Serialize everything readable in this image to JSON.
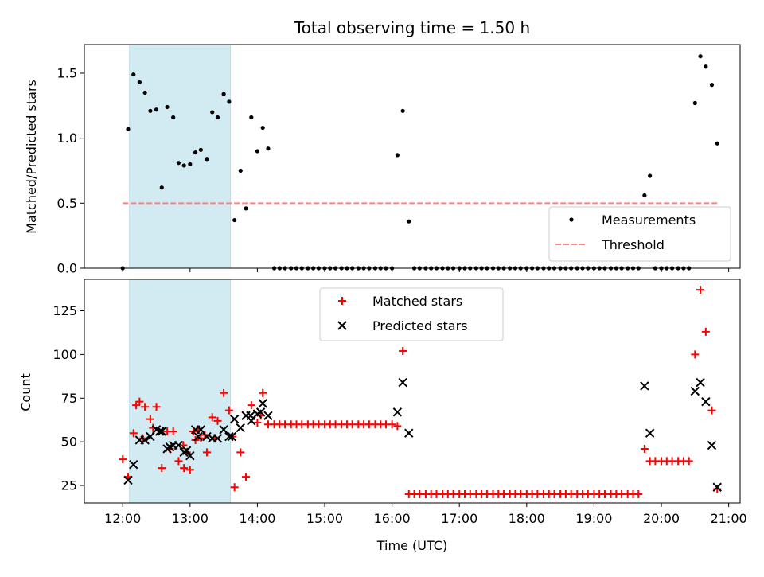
{
  "chart_data": [
    {
      "type": "scatter",
      "title": "Total observing time = 1.50 h",
      "xlabel": "",
      "ylabel": "Matched/Predicted stars",
      "x_range_hours": [
        11.43,
        21.17
      ],
      "ylim": [
        0,
        1.72
      ],
      "yticks": [
        0.0,
        0.5,
        1.0,
        1.5
      ],
      "ytick_labels": [
        "0.0",
        "0.5",
        "1.0",
        "1.5"
      ],
      "legend_position": "lower-right",
      "shaded_span_hours": [
        12.1,
        13.6
      ],
      "shaded_color": "#add8e6",
      "series": [
        {
          "name": "Measurements",
          "color": "#000000",
          "marker": "dot",
          "x": [
            12.0,
            12.08,
            12.16,
            12.25,
            12.33,
            12.41,
            12.5,
            12.58,
            12.66,
            12.75,
            12.83,
            12.91,
            13.0,
            13.08,
            13.16,
            13.25,
            13.33,
            13.41,
            13.5,
            13.58,
            13.66,
            13.75,
            13.83,
            13.91,
            14.0,
            14.08,
            14.16,
            14.25,
            14.33,
            14.41,
            14.5,
            14.58,
            14.66,
            14.75,
            14.83,
            14.91,
            15.0,
            15.08,
            15.16,
            15.25,
            15.33,
            15.41,
            15.5,
            15.58,
            15.66,
            15.75,
            15.83,
            15.91,
            16.0,
            16.08,
            16.16,
            16.25,
            16.33,
            16.41,
            16.5,
            16.58,
            16.66,
            16.75,
            16.83,
            16.91,
            17.0,
            17.08,
            17.16,
            17.25,
            17.33,
            17.41,
            17.5,
            17.58,
            17.66,
            17.75,
            17.83,
            17.91,
            18.0,
            18.08,
            18.16,
            18.25,
            18.33,
            18.41,
            18.5,
            18.58,
            18.66,
            18.75,
            18.83,
            18.91,
            19.0,
            19.08,
            19.16,
            19.25,
            19.33,
            19.41,
            19.5,
            19.58,
            19.66,
            19.75,
            19.83,
            19.91,
            20.0,
            20.08,
            20.16,
            20.25,
            20.33,
            20.41,
            20.5,
            20.58,
            20.66,
            20.75,
            20.83
          ],
          "y": [
            0.0,
            1.07,
            1.49,
            1.43,
            1.35,
            1.21,
            1.22,
            0.62,
            1.24,
            1.16,
            0.81,
            0.79,
            0.8,
            0.89,
            0.91,
            0.84,
            1.2,
            1.16,
            1.34,
            1.28,
            0.37,
            0.75,
            0.46,
            1.16,
            0.9,
            1.08,
            0.92,
            0.0,
            0.0,
            0.0,
            0.0,
            0.0,
            0.0,
            0.0,
            0.0,
            0.0,
            0.0,
            0.0,
            0.0,
            0.0,
            0.0,
            0.0,
            0.0,
            0.0,
            0.0,
            0.0,
            0.0,
            0.0,
            0.0,
            0.87,
            1.21,
            0.36,
            0.0,
            0.0,
            0.0,
            0.0,
            0.0,
            0.0,
            0.0,
            0.0,
            0.0,
            0.0,
            0.0,
            0.0,
            0.0,
            0.0,
            0.0,
            0.0,
            0.0,
            0.0,
            0.0,
            0.0,
            0.0,
            0.0,
            0.0,
            0.0,
            0.0,
            0.0,
            0.0,
            0.0,
            0.0,
            0.0,
            0.0,
            0.0,
            0.0,
            0.0,
            0.0,
            0.0,
            0.0,
            0.0,
            0.0,
            0.0,
            0.0,
            0.56,
            0.71,
            0.0,
            0.0,
            0.0,
            0.0,
            0.0,
            0.0,
            0.0,
            1.27,
            1.63,
            1.55,
            1.41,
            0.96
          ]
        },
        {
          "name": "Threshold",
          "color": "#ff8080",
          "style": "dashed",
          "x": [
            12.0,
            20.83
          ],
          "y": [
            0.5,
            0.5
          ]
        }
      ]
    },
    {
      "type": "scatter",
      "title": "",
      "xlabel": "Time (UTC)",
      "ylabel": "Count",
      "x_range_hours": [
        11.43,
        21.17
      ],
      "ylim": [
        15,
        143
      ],
      "yticks": [
        25,
        50,
        75,
        100,
        125
      ],
      "ytick_labels": [
        "25",
        "50",
        "75",
        "100",
        "125"
      ],
      "xticks_hours": [
        12,
        13,
        14,
        15,
        16,
        17,
        18,
        19,
        20,
        21
      ],
      "xtick_labels": [
        "12:00",
        "13:00",
        "14:00",
        "15:00",
        "16:00",
        "17:00",
        "18:00",
        "19:00",
        "20:00",
        "21:00"
      ],
      "legend_position": "upper-center",
      "shaded_span_hours": [
        12.1,
        13.6
      ],
      "shaded_color": "#add8e6",
      "series": [
        {
          "name": "Matched stars",
          "color": "#ff0000",
          "marker": "plus",
          "x": [
            12.0,
            12.08,
            12.16,
            12.25,
            12.33,
            12.41,
            12.5,
            12.58,
            12.66,
            12.75,
            12.83,
            12.91,
            13.0,
            13.08,
            13.16,
            13.25,
            13.33,
            13.41,
            13.5,
            13.58,
            13.66,
            13.75,
            13.83,
            13.91,
            14.0,
            14.08,
            14.16,
            14.25,
            14.33,
            14.41,
            14.5,
            14.58,
            14.66,
            14.75,
            14.83,
            14.91,
            15.0,
            15.08,
            15.16,
            15.25,
            15.33,
            15.41,
            15.5,
            15.58,
            15.66,
            15.75,
            15.83,
            15.91,
            16.0,
            16.08,
            16.16,
            16.25,
            16.33,
            16.41,
            16.5,
            16.58,
            16.66,
            16.75,
            16.83,
            16.91,
            17.0,
            17.08,
            17.16,
            17.25,
            17.33,
            17.41,
            17.5,
            17.58,
            17.66,
            17.75,
            17.83,
            17.91,
            18.0,
            18.08,
            18.16,
            18.25,
            18.33,
            18.41,
            18.5,
            18.58,
            18.66,
            18.75,
            18.83,
            18.91,
            19.0,
            19.08,
            19.16,
            19.25,
            19.33,
            19.41,
            19.5,
            19.58,
            19.66,
            19.75,
            19.83,
            19.91,
            20.0,
            20.08,
            20.16,
            20.25,
            20.33,
            20.41,
            20.5,
            20.58,
            20.66,
            20.75,
            20.83,
            12.2,
            12.3,
            12.45,
            12.7,
            12.95,
            13.05,
            13.12,
            13.38,
            13.63,
            14.05,
            12.9,
            13.22
          ],
          "y": [
            40,
            30,
            55,
            73,
            70,
            63,
            70,
            35,
            56,
            56,
            39,
            35,
            34,
            51,
            52,
            44,
            64,
            62,
            78,
            68,
            24,
            44,
            30,
            71,
            61,
            78,
            60,
            60,
            60,
            60,
            60,
            60,
            60,
            60,
            60,
            60,
            60,
            60,
            60,
            60,
            60,
            60,
            60,
            60,
            60,
            60,
            60,
            60,
            60,
            59,
            102,
            20,
            20,
            20,
            20,
            20,
            20,
            20,
            20,
            20,
            20,
            20,
            20,
            20,
            20,
            20,
            20,
            20,
            20,
            20,
            20,
            20,
            20,
            20,
            20,
            20,
            20,
            20,
            20,
            20,
            20,
            20,
            20,
            20,
            20,
            20,
            20,
            20,
            20,
            20,
            20,
            20,
            20,
            46,
            39,
            39,
            39,
            39,
            39,
            39,
            39,
            39,
            100,
            137,
            113,
            68,
            23,
            71,
            52,
            58,
            46,
            44,
            56,
            57,
            52,
            53,
            65,
            48,
            54
          ]
        },
        {
          "name": "Predicted stars",
          "color": "#000000",
          "marker": "x",
          "x": [
            12.08,
            12.16,
            12.25,
            12.33,
            12.41,
            12.5,
            12.58,
            12.66,
            12.75,
            12.83,
            12.91,
            13.0,
            13.08,
            13.16,
            13.25,
            13.33,
            13.41,
            13.5,
            13.58,
            13.66,
            13.75,
            13.83,
            13.91,
            14.0,
            14.08,
            14.16,
            16.08,
            16.16,
            16.25,
            19.75,
            19.83,
            20.5,
            20.58,
            20.66,
            20.75,
            20.83,
            12.55,
            12.7,
            12.95,
            13.12,
            13.62,
            13.9,
            14.05
          ],
          "y": [
            28,
            37,
            51,
            51,
            53,
            57,
            56,
            46,
            48,
            48,
            44,
            42,
            57,
            57,
            53,
            52,
            52,
            57,
            53,
            63,
            58,
            65,
            62,
            66,
            72,
            65,
            67,
            84,
            55,
            82,
            55,
            79,
            84,
            73,
            48,
            24,
            56,
            47,
            45,
            53,
            53,
            65,
            67
          ]
        }
      ]
    }
  ]
}
